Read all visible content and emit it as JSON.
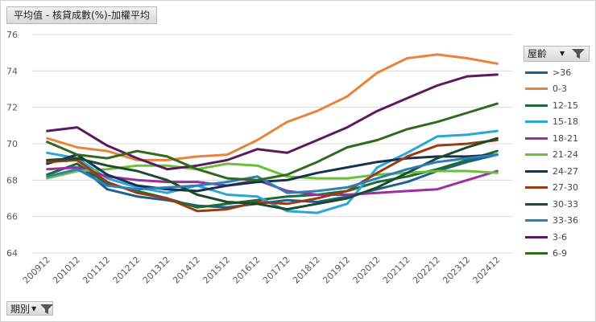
{
  "title_button": "平均值 - 核貸成數(%)-加權平均",
  "legend_title": "屋齡",
  "period_button": "期別",
  "icons": {
    "dropdown": "chevron-down-icon",
    "filter": "filter-icon"
  },
  "chart_data": {
    "type": "line",
    "title": "平均值 - 核貸成數(%)-加權平均",
    "xlabel": "期別",
    "ylabel": "",
    "ylim": [
      64,
      76
    ],
    "yticks": [
      "76",
      "74",
      "72",
      "70",
      "68",
      "66",
      "64"
    ],
    "grid": true,
    "legend_position": "right",
    "x": [
      "200912",
      "201012",
      "201112",
      "201212",
      "201312",
      "201412",
      "201512",
      "201612",
      "201712",
      "201812",
      "201912",
      "202012",
      "202112",
      "202212",
      "202312",
      "202412"
    ],
    "series": [
      {
        "name": ">36",
        "color": "#1f5f8b",
        "values": [
          68.3,
          68.9,
          67.5,
          67.1,
          66.9,
          66.6,
          66.5,
          66.7,
          66.9,
          66.8,
          67.1,
          67.5,
          67.9,
          68.5,
          69.0,
          69.4
        ]
      },
      {
        "name": "0-3",
        "color": "#e8843a",
        "values": [
          70.3,
          69.8,
          69.6,
          69.1,
          69.1,
          69.3,
          69.4,
          70.2,
          71.2,
          71.8,
          72.6,
          73.9,
          74.7,
          74.9,
          74.7,
          74.4
        ]
      },
      {
        "name": "12-15",
        "color": "#1e6b35",
        "values": [
          68.3,
          68.9,
          67.8,
          67.4,
          67.0,
          66.5,
          66.7,
          66.9,
          67.1,
          67.2,
          67.4,
          67.9,
          68.2,
          68.6,
          69.1,
          69.6
        ]
      },
      {
        "name": "15-18",
        "color": "#2aa6d8",
        "values": [
          69.5,
          69.2,
          68.1,
          67.6,
          67.3,
          67.7,
          67.2,
          67.1,
          66.3,
          66.2,
          66.7,
          68.7,
          69.5,
          70.4,
          70.5,
          70.7
        ]
      },
      {
        "name": "18-21",
        "color": "#9a2f9e",
        "values": [
          68.6,
          68.7,
          68.2,
          68.0,
          67.9,
          67.9,
          67.7,
          68.0,
          67.4,
          67.2,
          67.2,
          67.3,
          67.4,
          67.5,
          68.0,
          68.5
        ]
      },
      {
        "name": "21-24",
        "color": "#6cbf3a",
        "values": [
          68.1,
          68.5,
          68.6,
          68.8,
          68.8,
          68.6,
          68.9,
          68.8,
          68.2,
          68.1,
          68.1,
          68.3,
          68.4,
          68.5,
          68.5,
          68.4
        ]
      },
      {
        "name": "24-27",
        "color": "#17324f",
        "values": [
          68.9,
          69.4,
          68.3,
          67.7,
          67.5,
          67.4,
          67.7,
          67.9,
          68.0,
          68.4,
          68.7,
          69.0,
          69.2,
          69.3,
          69.3,
          69.4
        ]
      },
      {
        "name": "27-30",
        "color": "#9b3b14",
        "values": [
          69.0,
          69.1,
          67.9,
          67.3,
          67.0,
          66.3,
          66.4,
          66.8,
          66.7,
          67.0,
          67.4,
          68.4,
          69.3,
          69.9,
          70.0,
          70.2
        ]
      },
      {
        "name": "30-33",
        "color": "#1b4a2c",
        "values": [
          69.1,
          69.2,
          68.8,
          68.5,
          68.0,
          67.2,
          66.8,
          66.7,
          66.4,
          66.7,
          67.0,
          67.6,
          68.4,
          69.2,
          69.8,
          70.3
        ]
      },
      {
        "name": "33-36",
        "color": "#2c7fb8",
        "values": [
          68.2,
          68.6,
          67.7,
          67.5,
          67.6,
          67.7,
          67.9,
          68.2,
          67.3,
          67.4,
          67.6,
          68.1,
          68.6,
          69.0,
          69.2,
          69.4
        ]
      },
      {
        "name": "3-6",
        "color": "#5b1a5e",
        "values": [
          70.7,
          70.9,
          69.9,
          69.2,
          68.6,
          68.8,
          69.1,
          69.7,
          69.5,
          70.2,
          70.9,
          71.8,
          72.5,
          73.2,
          73.7,
          73.8
        ]
      },
      {
        "name": "6-9",
        "color": "#2e6b1e",
        "values": [
          70.1,
          69.4,
          69.2,
          69.6,
          69.3,
          68.6,
          68.1,
          68.0,
          68.3,
          69.0,
          69.8,
          70.2,
          70.8,
          71.2,
          71.7,
          72.2
        ]
      }
    ]
  }
}
